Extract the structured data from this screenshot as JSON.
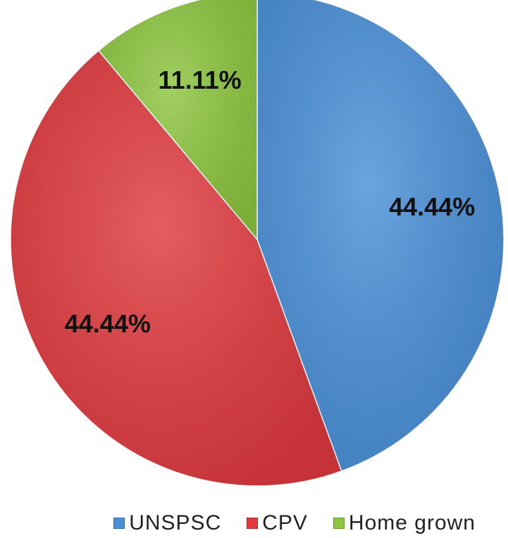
{
  "chart_data": {
    "type": "pie",
    "title": "",
    "categories": [
      "UNSPSC",
      "CPV",
      "Home grown"
    ],
    "values": [
      44.44,
      44.44,
      11.11
    ],
    "data_labels": [
      "44.44%",
      "44.44%",
      "11.11%"
    ],
    "colors": [
      "#4a90d9",
      "#e0393e",
      "#8dc63f"
    ],
    "start_angle": "12 o'clock",
    "direction": "clockwise",
    "legend_position": "bottom"
  },
  "legend": {
    "items": [
      {
        "label": "UNSPSC",
        "color": "#4a90d9"
      },
      {
        "label": "CPV",
        "color": "#e0393e"
      },
      {
        "label": "Home grown",
        "color": "#8dc63f"
      }
    ]
  }
}
